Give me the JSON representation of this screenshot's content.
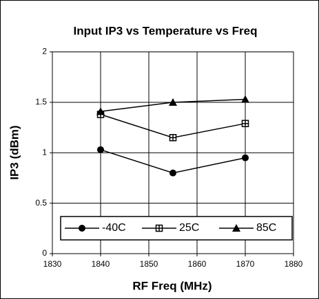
{
  "chart_data": {
    "type": "line",
    "title": "Input IP3 vs Temperature vs Freq",
    "x_label": "RF Freq (MHz)",
    "y_label": "IP3 (dBm)",
    "x": [
      1840,
      1855,
      1870
    ],
    "series": [
      {
        "name": "-40C",
        "color": "#000000",
        "marker": "circle",
        "values": [
          1.03,
          0.8,
          0.95
        ]
      },
      {
        "name": "25C",
        "color": "#000000",
        "marker": "square",
        "values": [
          1.38,
          1.15,
          1.29
        ]
      },
      {
        "name": "85C",
        "color": "#000000",
        "marker": "triangle",
        "values": [
          1.41,
          1.5,
          1.53
        ]
      }
    ],
    "xlim": [
      1830,
      1880
    ],
    "xticks": [
      1830,
      1840,
      1850,
      1860,
      1870,
      1880
    ],
    "ylim": [
      0,
      2
    ],
    "yticks": [
      0,
      0.5,
      1,
      1.5,
      2
    ],
    "grid": true,
    "legend": "lower"
  }
}
